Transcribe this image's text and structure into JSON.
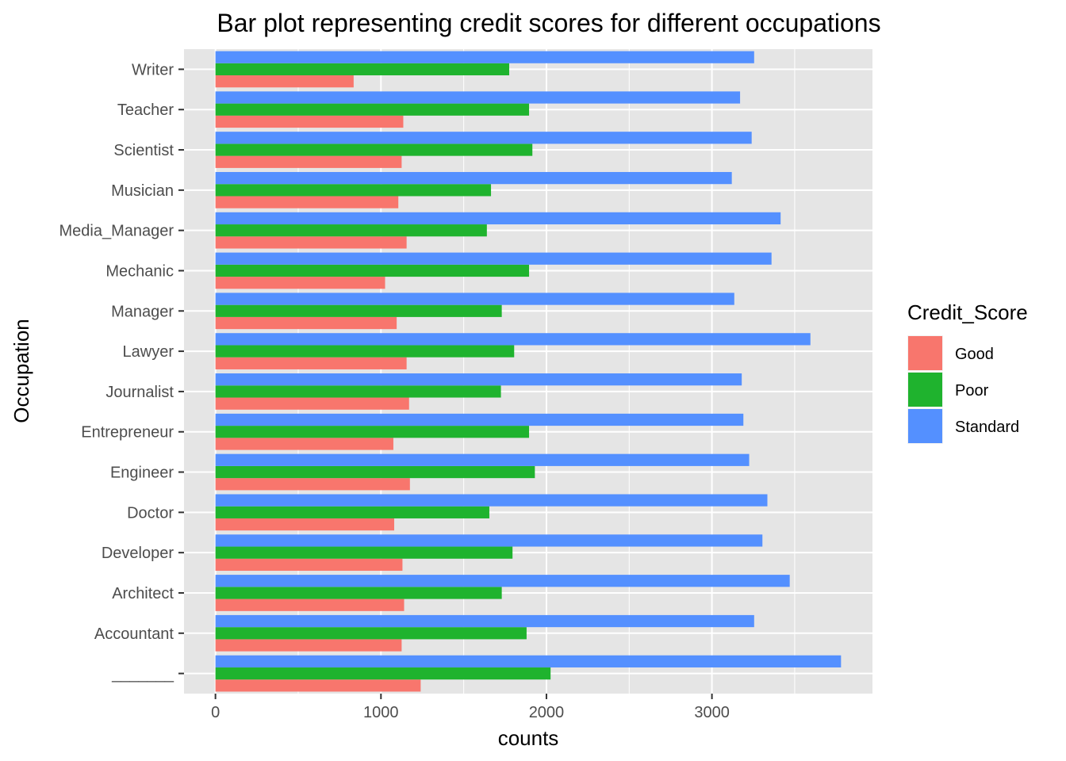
{
  "chart_data": {
    "type": "bar",
    "orientation": "horizontal",
    "title": "Bar plot representing credit scores for different occupations",
    "xlabel": "counts",
    "ylabel": "Occupation",
    "xlim": [
      -190,
      3970
    ],
    "xticks": [
      0,
      1000,
      2000,
      3000
    ],
    "xtick_labels": [
      "0",
      "1000",
      "2000",
      "3000"
    ],
    "grid": true,
    "background": "#e5e5e5",
    "legend": {
      "title": "Credit_Score",
      "placement": "right"
    },
    "categories": [
      "_______",
      "Accountant",
      "Architect",
      "Developer",
      "Doctor",
      "Engineer",
      "Entrepreneur",
      "Journalist",
      "Lawyer",
      "Manager",
      "Mechanic",
      "Media_Manager",
      "Musician",
      "Scientist",
      "Teacher",
      "Writer"
    ],
    "series": [
      {
        "name": "Good",
        "color": "#f8766d",
        "values": [
          1240,
          1125,
          1140,
          1130,
          1080,
          1175,
          1075,
          1170,
          1155,
          1095,
          1025,
          1155,
          1105,
          1125,
          1135,
          835
        ]
      },
      {
        "name": "Poor",
        "color": "#1fb32e",
        "values": [
          2025,
          1880,
          1730,
          1795,
          1655,
          1930,
          1895,
          1725,
          1805,
          1730,
          1895,
          1640,
          1665,
          1915,
          1895,
          1775
        ]
      },
      {
        "name": "Standard",
        "color": "#5490ff",
        "values": [
          3780,
          3255,
          3470,
          3305,
          3335,
          3225,
          3190,
          3180,
          3595,
          3135,
          3360,
          3415,
          3120,
          3240,
          3170,
          3255
        ]
      }
    ]
  }
}
